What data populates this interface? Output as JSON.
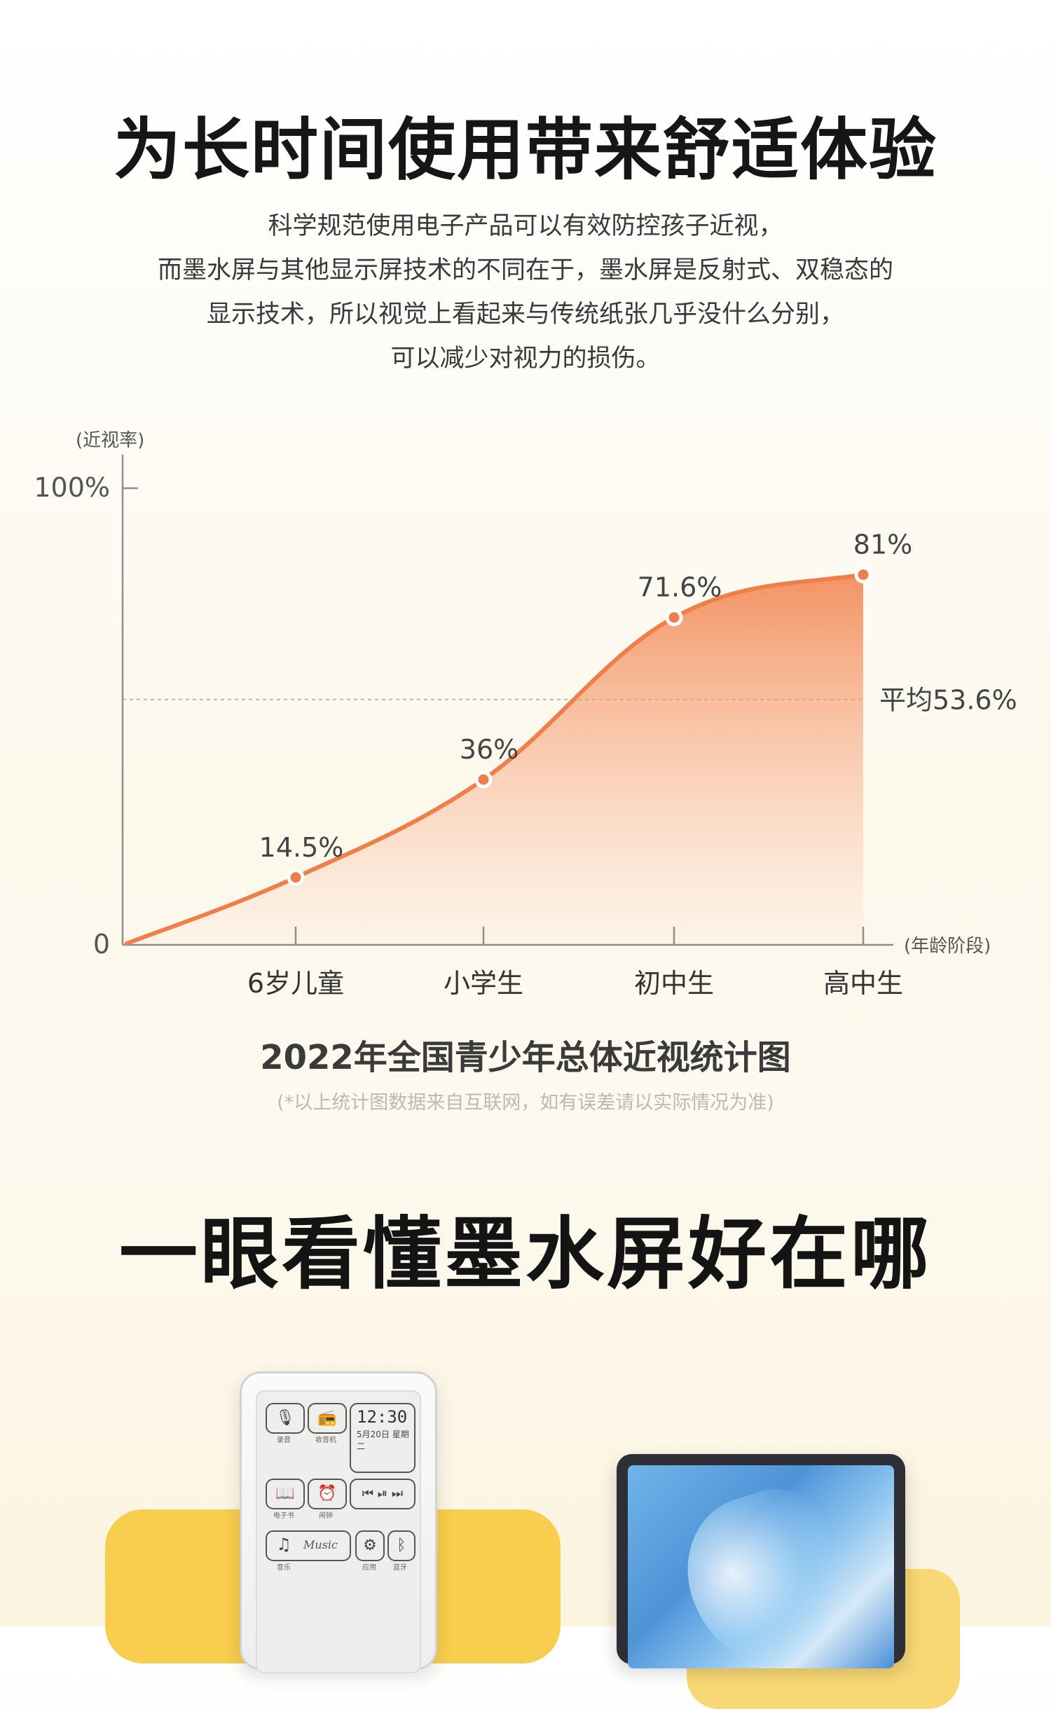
{
  "header": {
    "title": "为长时间使用带来舒适体验",
    "intro_lines": [
      "科学规范使用电子产品可以有效防控孩子近视，",
      "而墨水屏与其他显示屏技术的不同在于，墨水屏是反射式、双稳态的",
      "显示技术，所以视觉上看起来与传统纸张几乎没什么分别，",
      "可以减少对视力的损伤。"
    ]
  },
  "chart_data": {
    "type": "area",
    "title": "2022年全国青少年总体近视统计图",
    "note": "(*以上统计图数据来自互联网，如有误差请以实际情况为准)",
    "ylabel": "(近视率)",
    "xlabel": "(年龄阶段)",
    "ylim": [
      0,
      100
    ],
    "y_ticks": [
      {
        "value": 0,
        "label": "0"
      },
      {
        "value": 100,
        "label": "100%"
      }
    ],
    "categories": [
      "6岁儿童",
      "小学生",
      "初中生",
      "高中生"
    ],
    "values": [
      14.5,
      36,
      71.6,
      81
    ],
    "value_labels": [
      "14.5%",
      "36%",
      "71.6%",
      "81%"
    ],
    "reference_line": {
      "value": 53.6,
      "label": "平均53.6%"
    },
    "origin_value": 0,
    "series_color": "#f07e49",
    "fill_top_color": "#f38d5c",
    "fill_bottom_color": "#fdf1e4",
    "grid": false
  },
  "section2": {
    "title": "一眼看懂墨水屏好在哪"
  },
  "device": {
    "clock_time": "12:30",
    "clock_date": "5月20日 星期二",
    "music_word": "Music",
    "apps": [
      {
        "icon": "🎙",
        "label": "录音"
      },
      {
        "icon": "📻",
        "label": "收音机"
      },
      {
        "icon": "📖",
        "label": "电子书"
      },
      {
        "icon": "⏰",
        "label": "闹钟"
      },
      {
        "icon": "♫",
        "label": "音乐"
      },
      {
        "icon": "⚙",
        "label": "应用"
      },
      {
        "icon": "ᛒ",
        "label": "蓝牙"
      }
    ],
    "player_icons": "⏮ ⏯ ⏭"
  }
}
